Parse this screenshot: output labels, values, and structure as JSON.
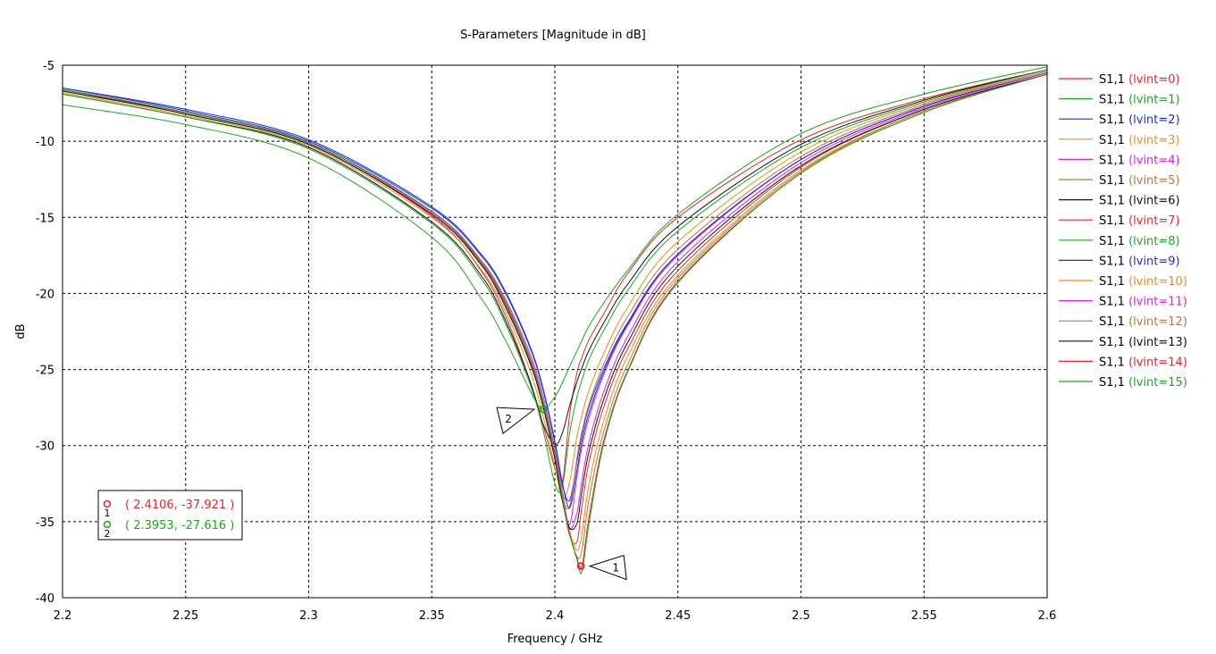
{
  "chart_data": {
    "type": "line",
    "title": "S-Parameters [Magnitude in dB]",
    "xlabel": "Frequency / GHz",
    "ylabel": "dB",
    "xlim": [
      2.2,
      2.6
    ],
    "ylim": [
      -40,
      -5
    ],
    "xticks": [
      2.2,
      2.25,
      2.3,
      2.35,
      2.4,
      2.45,
      2.5,
      2.55,
      2.6
    ],
    "xtick_labels": [
      "2.2",
      "2.25",
      "2.3",
      "2.35",
      "2.4",
      "2.45",
      "2.5",
      "2.55",
      "2.6"
    ],
    "yticks": [
      -40,
      -35,
      -30,
      -25,
      -20,
      -15,
      -10,
      -5
    ],
    "ytick_labels": [
      "-40",
      "-35",
      "-30",
      "-25",
      "-20",
      "-15",
      "-10",
      "-5"
    ],
    "grid": true,
    "legend_position": "right",
    "x": [
      2.2,
      2.25,
      2.3,
      2.35,
      2.37,
      2.38,
      2.39,
      2.395,
      2.4,
      2.403,
      2.406,
      2.409,
      2.411,
      2.414,
      2.42,
      2.43,
      2.45,
      2.5,
      2.55,
      2.6
    ],
    "series": [
      {
        "name": "S1,1 (lvint=0)",
        "color": "#e8242a",
        "values": [
          -6.6,
          -8.2,
          -10.2,
          -14.9,
          -18.5,
          -21.5,
          -25.8,
          -28.5,
          -31.5,
          -32.5,
          -28.0,
          -25.2,
          -24.2,
          -23.0,
          -21.3,
          -18.6,
          -15.0,
          -9.9,
          -7.2,
          -5.3
        ]
      },
      {
        "name": "S1,1 (lvint=1)",
        "color": "#1aa81a",
        "values": [
          -7.6,
          -8.9,
          -11.1,
          -16.3,
          -20.3,
          -23.1,
          -26.4,
          -27.6,
          -26.8,
          -25.9,
          -24.8,
          -23.8,
          -23.1,
          -22.1,
          -20.6,
          -18.4,
          -14.8,
          -9.5,
          -6.9,
          -5.1
        ]
      },
      {
        "name": "S1,1 (lvint=2)",
        "color": "#1f2ee0",
        "values": [
          -6.5,
          -8.0,
          -10.0,
          -14.4,
          -17.5,
          -20.0,
          -23.6,
          -26.2,
          -29.8,
          -32.5,
          -33.6,
          -31.0,
          -29.3,
          -27.4,
          -24.9,
          -21.8,
          -17.4,
          -11.2,
          -7.7,
          -5.5
        ]
      },
      {
        "name": "S1,1 (lvint=3)",
        "color": "#f08a1a",
        "values": [
          -6.8,
          -8.3,
          -10.3,
          -15.0,
          -18.4,
          -21.2,
          -25.1,
          -27.9,
          -31.4,
          -33.5,
          -32.4,
          -29.4,
          -28.0,
          -26.3,
          -23.9,
          -20.8,
          -16.6,
          -10.7,
          -7.5,
          -5.4
        ]
      },
      {
        "name": "S1,1 (lvint=4)",
        "color": "#e020e0",
        "values": [
          -6.6,
          -8.1,
          -10.1,
          -14.6,
          -17.8,
          -20.4,
          -24.0,
          -26.6,
          -30.2,
          -32.9,
          -35.2,
          -32.0,
          -30.1,
          -28.1,
          -25.3,
          -22.0,
          -17.5,
          -11.2,
          -7.7,
          -5.5
        ]
      },
      {
        "name": "S1,1 (lvint=5)",
        "color": "#b07a3a",
        "values": [
          -6.7,
          -8.2,
          -10.2,
          -14.8,
          -18.1,
          -20.8,
          -24.5,
          -27.2,
          -30.8,
          -33.4,
          -34.0,
          -30.8,
          -29.1,
          -27.2,
          -24.6,
          -21.4,
          -17.1,
          -11.0,
          -7.6,
          -5.4
        ]
      },
      {
        "name": "S1,1 (lvint=6)",
        "color": "#111111",
        "values": [
          -6.9,
          -8.4,
          -10.4,
          -15.3,
          -18.8,
          -21.8,
          -25.8,
          -28.5,
          -29.9,
          -29.2,
          -27.4,
          -25.8,
          -24.9,
          -23.7,
          -21.9,
          -19.3,
          -15.6,
          -10.2,
          -7.3,
          -5.3
        ]
      },
      {
        "name": "S1,1 (lvint=7)",
        "color": "#e8242a",
        "values": [
          -6.6,
          -8.1,
          -10.1,
          -14.6,
          -17.9,
          -20.6,
          -24.3,
          -27.0,
          -30.6,
          -33.4,
          -35.9,
          -36.3,
          -34.0,
          -31.0,
          -27.4,
          -23.5,
          -18.5,
          -11.7,
          -7.9,
          -5.6
        ]
      },
      {
        "name": "S1,1 (lvint=8)",
        "color": "#1aa81a",
        "values": [
          -6.9,
          -8.4,
          -10.5,
          -15.4,
          -19.0,
          -22.0,
          -26.0,
          -28.8,
          -32.5,
          -32.7,
          -29.2,
          -26.8,
          -25.7,
          -24.3,
          -22.4,
          -19.7,
          -15.9,
          -10.4,
          -7.4,
          -5.3
        ]
      },
      {
        "name": "S1,1 (lvint=9)",
        "color": "#1f2ee0",
        "values": [
          -6.5,
          -7.9,
          -9.9,
          -14.3,
          -17.4,
          -19.9,
          -23.5,
          -26.1,
          -29.7,
          -32.4,
          -34.1,
          -31.6,
          -29.7,
          -27.8,
          -25.1,
          -21.9,
          -17.4,
          -11.2,
          -7.7,
          -5.5
        ]
      },
      {
        "name": "S1,1 (lvint=10)",
        "color": "#f08a1a",
        "values": [
          -6.6,
          -8.1,
          -10.1,
          -14.6,
          -17.8,
          -20.5,
          -24.2,
          -26.9,
          -30.5,
          -33.3,
          -35.6,
          -36.9,
          -35.8,
          -32.4,
          -28.3,
          -24.0,
          -18.8,
          -11.9,
          -8.0,
          -5.6
        ]
      },
      {
        "name": "S1,1 (lvint=11)",
        "color": "#e020e0",
        "values": [
          -6.6,
          -8.1,
          -10.1,
          -14.7,
          -18.0,
          -20.7,
          -24.4,
          -27.1,
          -30.7,
          -33.5,
          -35.5,
          -34.4,
          -32.3,
          -29.7,
          -26.4,
          -22.7,
          -17.9,
          -11.4,
          -7.8,
          -5.5
        ]
      },
      {
        "name": "S1,1 (lvint=12)",
        "color": "#b07a3a",
        "values": [
          -6.6,
          -8.1,
          -10.1,
          -14.6,
          -17.9,
          -20.6,
          -24.3,
          -27.0,
          -30.6,
          -33.4,
          -35.8,
          -37.3,
          -36.9,
          -33.4,
          -29.0,
          -24.5,
          -19.0,
          -12.0,
          -8.0,
          -5.6
        ]
      },
      {
        "name": "S1,1 (lvint=13)",
        "color": "#111111",
        "values": [
          -6.7,
          -8.2,
          -10.2,
          -14.8,
          -18.1,
          -20.9,
          -24.6,
          -27.3,
          -30.9,
          -33.6,
          -35.4,
          -35.1,
          -33.0,
          -30.3,
          -26.9,
          -23.1,
          -18.2,
          -11.6,
          -7.9,
          -5.6
        ]
      },
      {
        "name": "S1,1 (lvint=14)",
        "color": "#e8242a",
        "values": [
          -6.6,
          -8.1,
          -10.1,
          -14.6,
          -17.9,
          -20.6,
          -24.3,
          -27.0,
          -30.6,
          -33.4,
          -35.8,
          -37.4,
          -37.9,
          -34.6,
          -29.6,
          -24.9,
          -19.2,
          -12.1,
          -8.1,
          -5.6
        ]
      },
      {
        "name": "S1,1 (lvint=15)",
        "color": "#1aa81a",
        "values": [
          -6.6,
          -8.1,
          -10.1,
          -14.6,
          -17.9,
          -20.6,
          -24.3,
          -27.0,
          -30.6,
          -33.4,
          -35.8,
          -37.5,
          -38.3,
          -35.0,
          -29.8,
          -25.0,
          -19.3,
          -12.1,
          -8.1,
          -5.6
        ]
      }
    ],
    "markers": [
      {
        "id": "1",
        "x": 2.4106,
        "y": -37.921,
        "color": "#e8242a",
        "label_color": "#e8242a",
        "readout": "( 2.4106, -37.921 )"
      },
      {
        "id": "2",
        "x": 2.3953,
        "y": -27.616,
        "color": "#1aa81a",
        "label_color": "#1aa81a",
        "readout": "( 2.3953, -27.616 )"
      }
    ]
  }
}
